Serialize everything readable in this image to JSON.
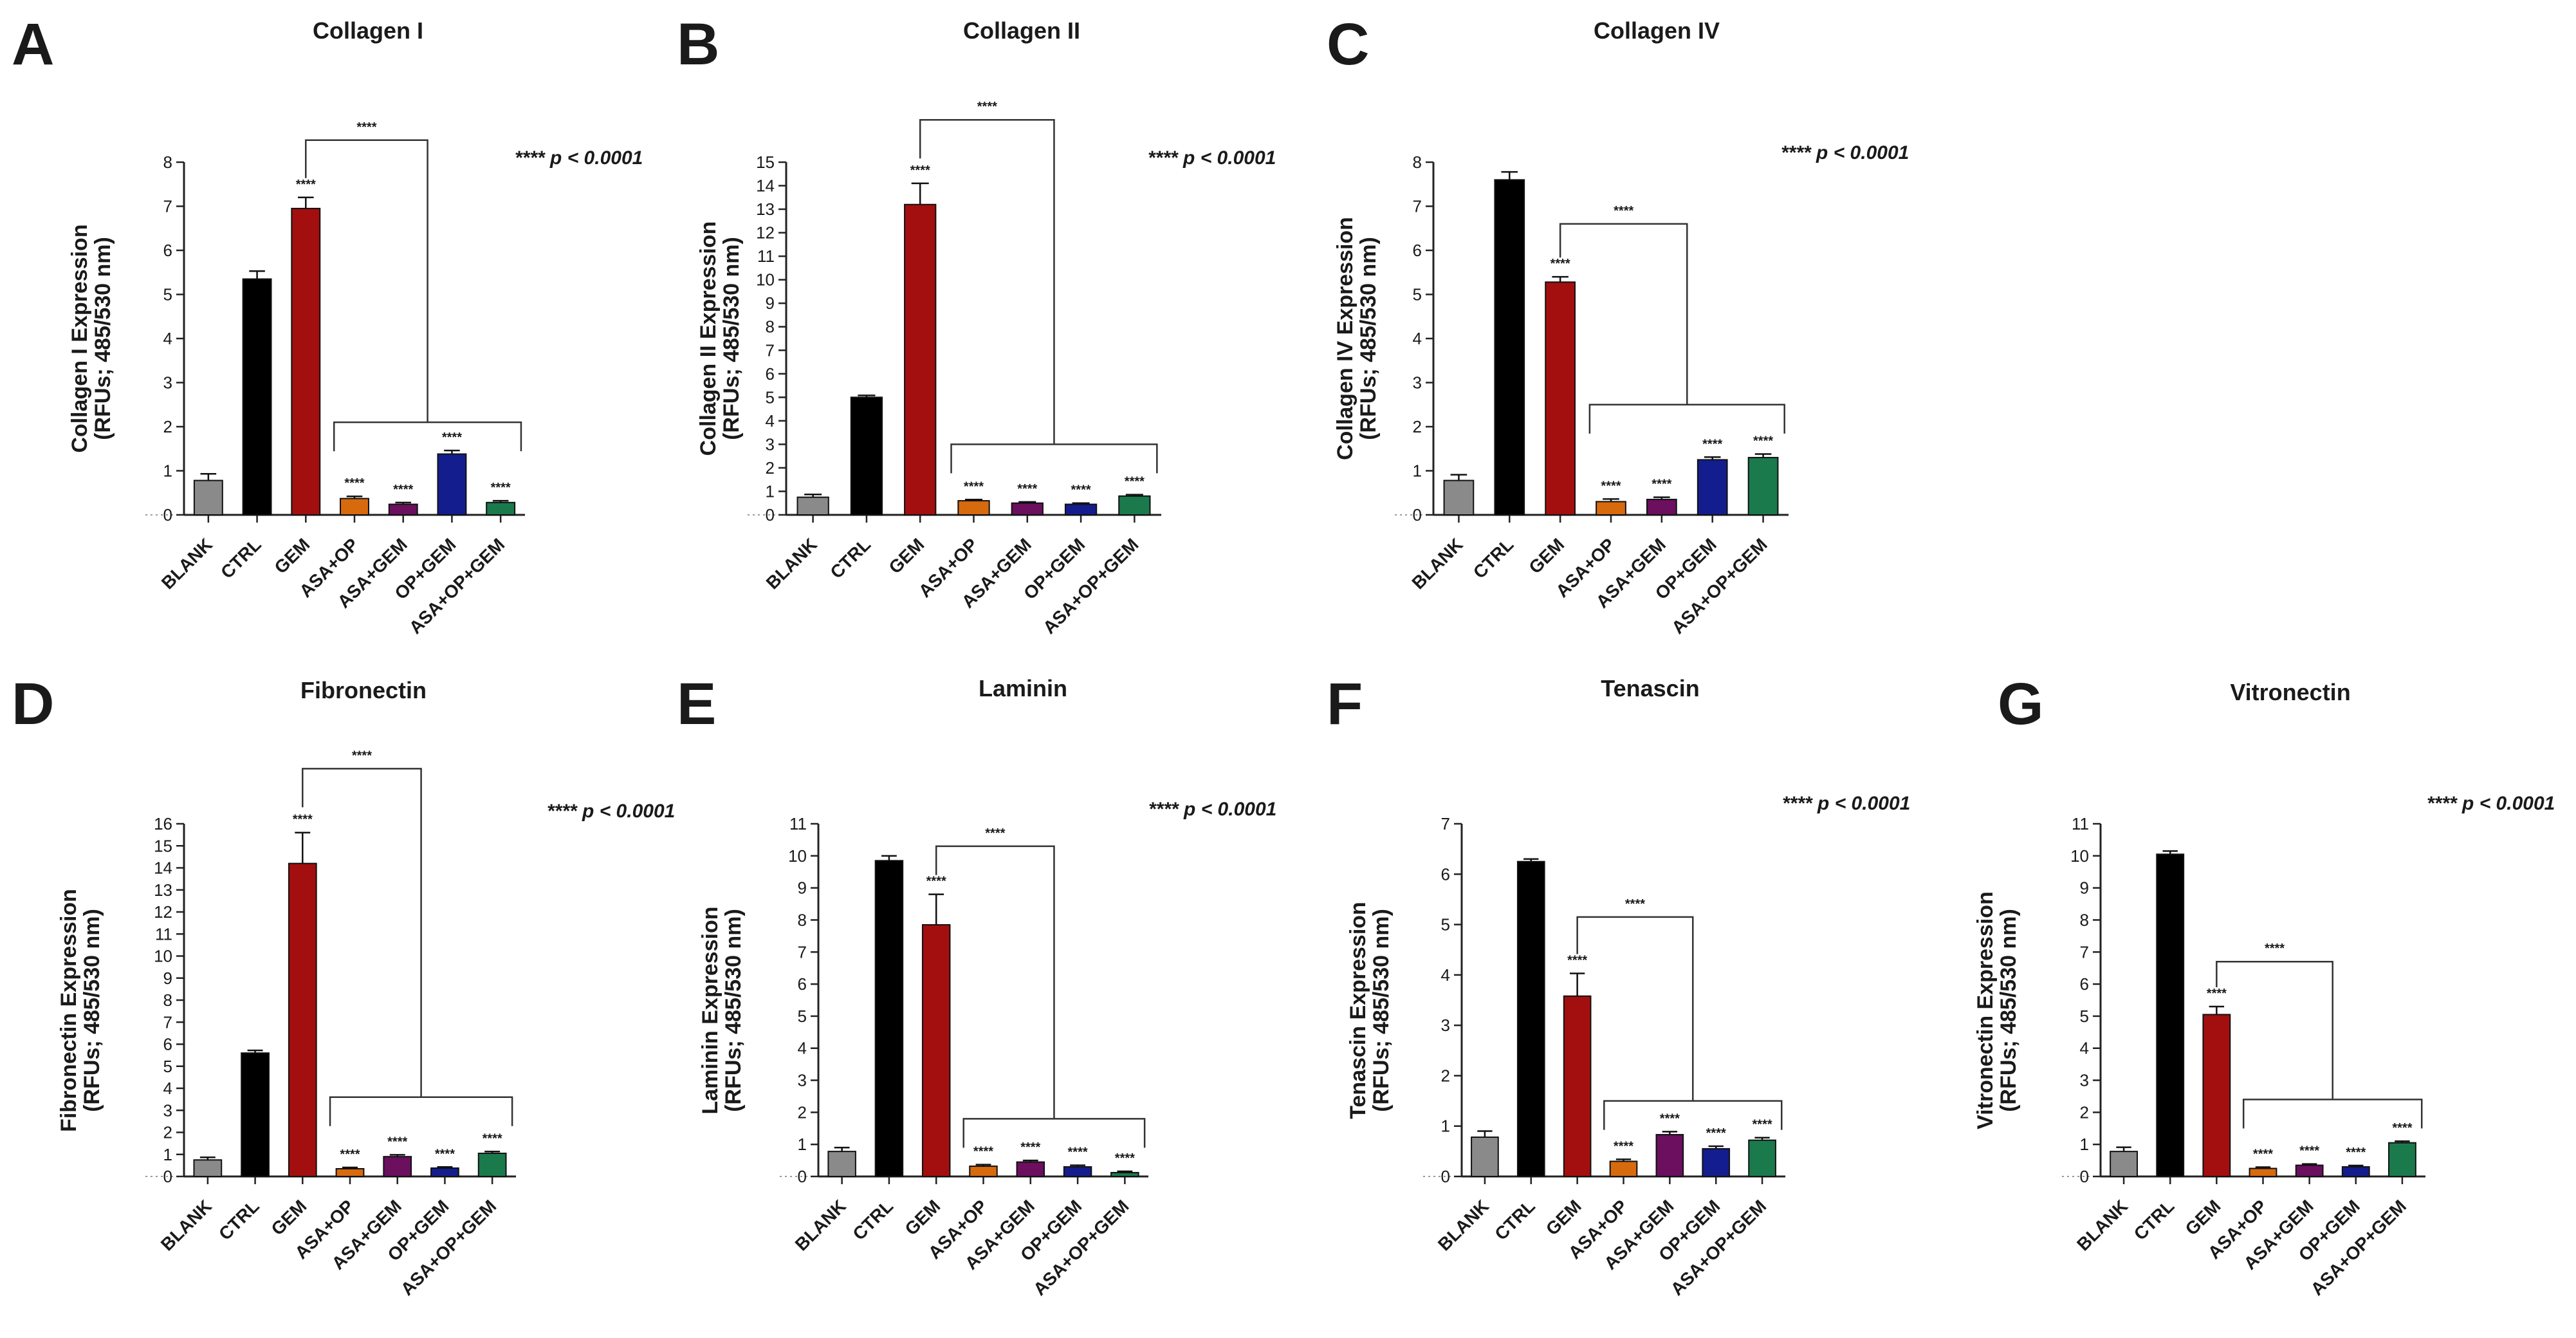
{
  "figure": {
    "colors": {
      "BLANK": "#8a8a8a",
      "CTRL": "#000000",
      "GEM": "#a30f0f",
      "ASA+OP": "#d86a0e",
      "ASA+GEM": "#6b0f5e",
      "OP+GEM": "#141d8e",
      "ASA+OP+GEM": "#1a7a4c"
    }
  },
  "chart_data": [
    {
      "panel": "A",
      "type": "bar",
      "title": "Collagen I",
      "ylabel_line1": "Collagen I Expression",
      "ylabel_line2": "(RFUs; 485/530 nm)",
      "ylim": [
        0,
        8
      ],
      "yticks": [
        "0",
        "1",
        "2",
        "3",
        "4",
        "5",
        "6",
        "7",
        "8"
      ],
      "categories": [
        "BLANK",
        "CTRL",
        "GEM",
        "ASA+OP",
        "ASA+GEM",
        "OP+GEM",
        "ASA+OP+GEM"
      ],
      "values": [
        0.78,
        5.35,
        6.95,
        0.37,
        0.24,
        1.38,
        0.28
      ],
      "errors": [
        0.15,
        0.18,
        0.25,
        0.05,
        0.04,
        0.08,
        0.04
      ],
      "stars": [
        "",
        "",
        "****",
        "****",
        "****",
        "****",
        "****"
      ],
      "bracket_upper": {
        "from": 2,
        "label": "****",
        "level": 8.5
      },
      "bracket_lower": {
        "from": 3,
        "to": 6,
        "level": 2.1
      },
      "p_note": "**** p < 0.0001"
    },
    {
      "panel": "B",
      "type": "bar",
      "title": "Collagen II",
      "ylabel_line1": "Collagen II Expression",
      "ylabel_line2": "(RFUs; 485/530 nm)",
      "ylim": [
        0,
        15
      ],
      "yticks": [
        "0",
        "1",
        "2",
        "3",
        "4",
        "5",
        "6",
        "7",
        "8",
        "9",
        "10",
        "11",
        "12",
        "13",
        "14",
        "15"
      ],
      "categories": [
        "BLANK",
        "CTRL",
        "GEM",
        "ASA+OP",
        "ASA+GEM",
        "OP+GEM",
        "ASA+OP+GEM"
      ],
      "values": [
        0.75,
        5.0,
        13.2,
        0.6,
        0.5,
        0.45,
        0.8
      ],
      "errors": [
        0.12,
        0.08,
        0.9,
        0.05,
        0.05,
        0.05,
        0.06
      ],
      "stars": [
        "",
        "",
        "****",
        "****",
        "****",
        "****",
        "****"
      ],
      "bracket_upper": {
        "from": 2,
        "label": "****",
        "level": 16.8
      },
      "bracket_lower": {
        "from": 3,
        "to": 6,
        "level": 3.0
      },
      "p_note": "**** p < 0.0001"
    },
    {
      "panel": "C",
      "type": "bar",
      "title": "Collagen IV",
      "ylabel_line1": "Collagen IV Expression",
      "ylabel_line2": "(RFUs; 485/530 nm)",
      "ylim": [
        0,
        8
      ],
      "yticks": [
        "0",
        "1",
        "2",
        "3",
        "4",
        "5",
        "6",
        "7",
        "8"
      ],
      "categories": [
        "BLANK",
        "CTRL",
        "GEM",
        "ASA+OP",
        "ASA+GEM",
        "OP+GEM",
        "ASA+OP+GEM"
      ],
      "values": [
        0.78,
        7.6,
        5.28,
        0.3,
        0.35,
        1.25,
        1.3
      ],
      "errors": [
        0.13,
        0.18,
        0.12,
        0.06,
        0.05,
        0.06,
        0.08
      ],
      "stars": [
        "",
        "",
        "****",
        "****",
        "****",
        "****",
        "****"
      ],
      "bracket_upper": {
        "from": 2,
        "label": "****",
        "level": 6.6
      },
      "bracket_lower": {
        "from": 3,
        "to": 6,
        "level": 2.5
      },
      "p_note": "**** p < 0.0001"
    },
    {
      "panel": "D",
      "type": "bar",
      "title": "Fibronectin",
      "ylabel_line1": "Fibronectin Expression",
      "ylabel_line2": "(RFUs; 485/530 nm)",
      "ylim": [
        0,
        16
      ],
      "yticks": [
        "0",
        "1",
        "2",
        "3",
        "4",
        "5",
        "6",
        "7",
        "8",
        "9",
        "10",
        "11",
        "12",
        "13",
        "14",
        "15",
        "16"
      ],
      "categories": [
        "BLANK",
        "CTRL",
        "GEM",
        "ASA+OP",
        "ASA+GEM",
        "OP+GEM",
        "ASA+OP+GEM"
      ],
      "values": [
        0.75,
        5.6,
        14.2,
        0.35,
        0.9,
        0.38,
        1.05
      ],
      "errors": [
        0.12,
        0.12,
        1.4,
        0.06,
        0.08,
        0.05,
        0.08
      ],
      "stars": [
        "",
        "",
        "****",
        "****",
        "****",
        "****",
        "****"
      ],
      "bracket_upper": {
        "from": 2,
        "label": "****",
        "level": 18.5
      },
      "bracket_lower": {
        "from": 3,
        "to": 6,
        "level": 3.6
      },
      "p_note": "**** p < 0.0001"
    },
    {
      "panel": "E",
      "type": "bar",
      "title": "Laminin",
      "ylabel_line1": "Laminin Expression",
      "ylabel_line2": "(RFUs; 485/530 nm)",
      "ylim": [
        0,
        11
      ],
      "yticks": [
        "0",
        "1",
        "2",
        "3",
        "4",
        "5",
        "6",
        "7",
        "8",
        "9",
        "10",
        "11"
      ],
      "categories": [
        "BLANK",
        "CTRL",
        "GEM",
        "ASA+OP",
        "ASA+GEM",
        "OP+GEM",
        "ASA+OP+GEM"
      ],
      "values": [
        0.78,
        9.85,
        7.85,
        0.32,
        0.45,
        0.3,
        0.12
      ],
      "errors": [
        0.12,
        0.15,
        0.95,
        0.05,
        0.05,
        0.05,
        0.04
      ],
      "stars": [
        "",
        "",
        "****",
        "****",
        "****",
        "****",
        "****"
      ],
      "bracket_upper": {
        "from": 2,
        "label": "****",
        "level": 10.3
      },
      "bracket_lower": {
        "from": 3,
        "to": 6,
        "level": 1.8
      },
      "p_note": "**** p < 0.0001"
    },
    {
      "panel": "F",
      "type": "bar",
      "title": "Tenascin",
      "ylabel_line1": "Tenascin Expression",
      "ylabel_line2": "(RFUs; 485/530 nm)",
      "ylim": [
        0,
        7
      ],
      "yticks": [
        "0",
        "1",
        "2",
        "3",
        "4",
        "5",
        "6",
        "7"
      ],
      "categories": [
        "BLANK",
        "CTRL",
        "GEM",
        "ASA+OP",
        "ASA+GEM",
        "OP+GEM",
        "ASA+OP+GEM"
      ],
      "values": [
        0.78,
        6.25,
        3.58,
        0.3,
        0.83,
        0.55,
        0.72
      ],
      "errors": [
        0.12,
        0.05,
        0.45,
        0.04,
        0.06,
        0.05,
        0.05
      ],
      "stars": [
        "",
        "",
        "****",
        "****",
        "****",
        "****",
        "****"
      ],
      "bracket_upper": {
        "from": 2,
        "label": "****",
        "level": 5.15
      },
      "bracket_lower": {
        "from": 3,
        "to": 6,
        "level": 1.5
      },
      "p_note": "**** p < 0.0001"
    },
    {
      "panel": "G",
      "type": "bar",
      "title": "Vitronectin",
      "ylabel_line1": "Vitronectin Expression",
      "ylabel_line2": "(RFUs; 485/530 nm)",
      "ylim": [
        0,
        11
      ],
      "yticks": [
        "0",
        "1",
        "2",
        "3",
        "4",
        "5",
        "6",
        "7",
        "8",
        "9",
        "10",
        "11"
      ],
      "categories": [
        "BLANK",
        "CTRL",
        "GEM",
        "ASA+OP",
        "ASA+GEM",
        "OP+GEM",
        "ASA+OP+GEM"
      ],
      "values": [
        0.78,
        10.05,
        5.05,
        0.25,
        0.35,
        0.3,
        1.05
      ],
      "errors": [
        0.13,
        0.1,
        0.25,
        0.04,
        0.04,
        0.04,
        0.05
      ],
      "stars": [
        "",
        "",
        "****",
        "****",
        "****",
        "****",
        "****"
      ],
      "bracket_upper": {
        "from": 2,
        "label": "****",
        "level": 6.7
      },
      "bracket_lower": {
        "from": 3,
        "to": 6,
        "level": 2.4
      },
      "p_note": "**** p < 0.0001"
    }
  ]
}
